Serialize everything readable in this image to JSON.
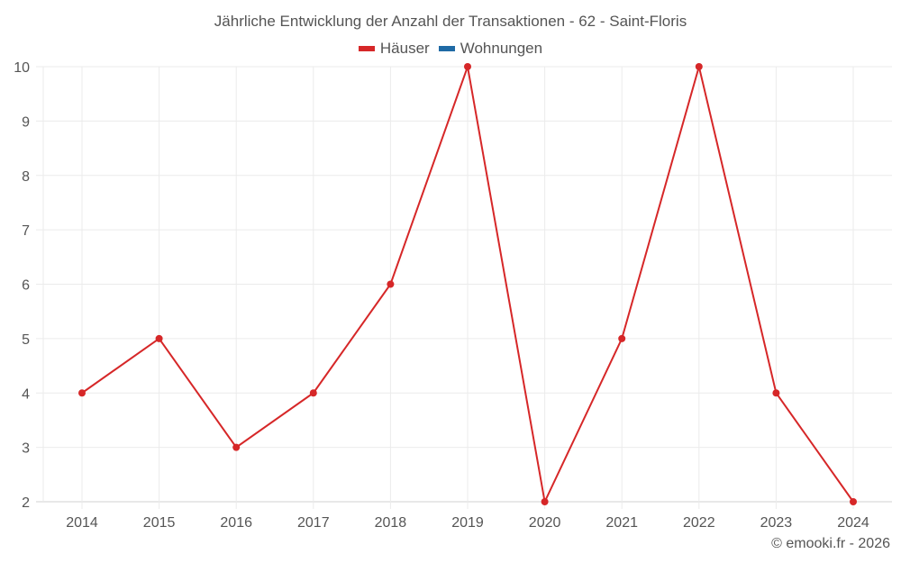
{
  "chart_data": {
    "type": "line",
    "title": "Jährliche Entwicklung der Anzahl der Transaktionen - 62 - Saint-Floris",
    "xlabel": "",
    "ylabel": "",
    "categories": [
      "2014",
      "2015",
      "2016",
      "2017",
      "2018",
      "2019",
      "2020",
      "2021",
      "2022",
      "2023",
      "2024"
    ],
    "series": [
      {
        "name": "Häuser",
        "color": "#d62728",
        "values": [
          4,
          5,
          3,
          4,
          6,
          10,
          2,
          5,
          10,
          4,
          2
        ]
      },
      {
        "name": "Wohnungen",
        "color": "#1f6aa5",
        "values": []
      }
    ],
    "y_ticks": [
      2,
      3,
      4,
      5,
      6,
      7,
      8,
      9,
      10
    ],
    "ylim": [
      2,
      10
    ],
    "grid": true,
    "legend_position": "top"
  },
  "legend": {
    "items": [
      {
        "label": "Häuser",
        "color": "#d62728"
      },
      {
        "label": "Wohnungen",
        "color": "#1f6aa5"
      }
    ]
  },
  "watermark": "© emooki.fr - 2026"
}
